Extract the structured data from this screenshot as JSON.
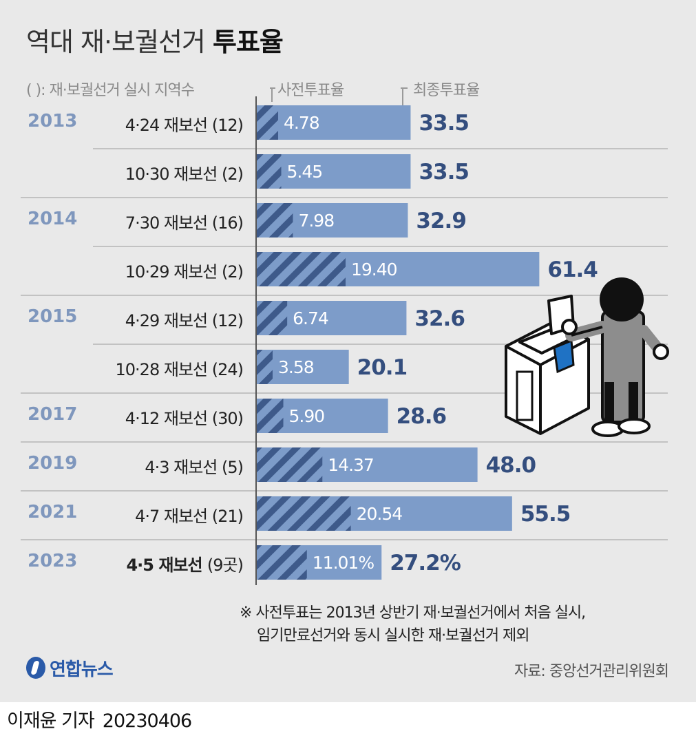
{
  "title_light": "역대 재·보궐선거",
  "title_bold": "투표율",
  "note_head": "(  ): 재·보궐선거 실시 지역수",
  "legend": {
    "early": "사전투표율",
    "final": "최종투표율"
  },
  "colors": {
    "bar": "#7d9cc9",
    "hatch_dark": "#3e5a8a",
    "value_label": "#344e7e",
    "year_label": "#7f97bd"
  },
  "chart_data": {
    "type": "bar",
    "orientation": "horizontal",
    "categories": [
      {
        "year": "2013",
        "election": "4·24 재보선",
        "count": "(12)"
      },
      {
        "year": "",
        "election": "10·30 재보선",
        "count": "(2)"
      },
      {
        "year": "2014",
        "election": "7·30 재보선",
        "count": "(16)"
      },
      {
        "year": "",
        "election": "10·29 재보선",
        "count": "(2)"
      },
      {
        "year": "2015",
        "election": "4·29 재보선",
        "count": "(12)"
      },
      {
        "year": "",
        "election": "10·28 재보선",
        "count": "(24)"
      },
      {
        "year": "2017",
        "election": "4·12 재보선",
        "count": "(30)"
      },
      {
        "year": "2019",
        "election": "4·3 재보선",
        "count": "(5)"
      },
      {
        "year": "2021",
        "election": "4·7 재보선",
        "count": "(21)"
      },
      {
        "year": "2023",
        "election": "4·5 재보선",
        "count": "(9곳)",
        "highlight": true
      }
    ],
    "series": [
      {
        "name": "사전투표율",
        "values": [
          4.78,
          5.45,
          7.98,
          19.4,
          6.74,
          3.58,
          5.9,
          14.37,
          20.54,
          11.01
        ],
        "labels": [
          "4.78",
          "5.45",
          "7.98",
          "19.40",
          "6.74",
          "3.58",
          "5.90",
          "14.37",
          "20.54",
          "11.01%"
        ]
      },
      {
        "name": "최종투표율",
        "values": [
          33.5,
          33.5,
          32.9,
          61.4,
          32.6,
          20.1,
          28.6,
          48.0,
          55.5,
          27.2
        ],
        "labels": [
          "33.5",
          "33.5",
          "32.9",
          "61.4",
          "32.6",
          "20.1",
          "28.6",
          "48.0",
          "55.5",
          "27.2%"
        ]
      }
    ],
    "xlim": [
      0,
      70
    ]
  },
  "footnote_1": "※ 사전투표는 2013년 상반기 재·보궐선거에서 처음 실시,",
  "footnote_2": "임기만료선거와 동시 실시한 재·보궐선거 제외",
  "logo_name": "연합뉴스",
  "source": "자료: 중앙선거관리위원회",
  "reporter": "이재윤 기자",
  "date": "20230406"
}
